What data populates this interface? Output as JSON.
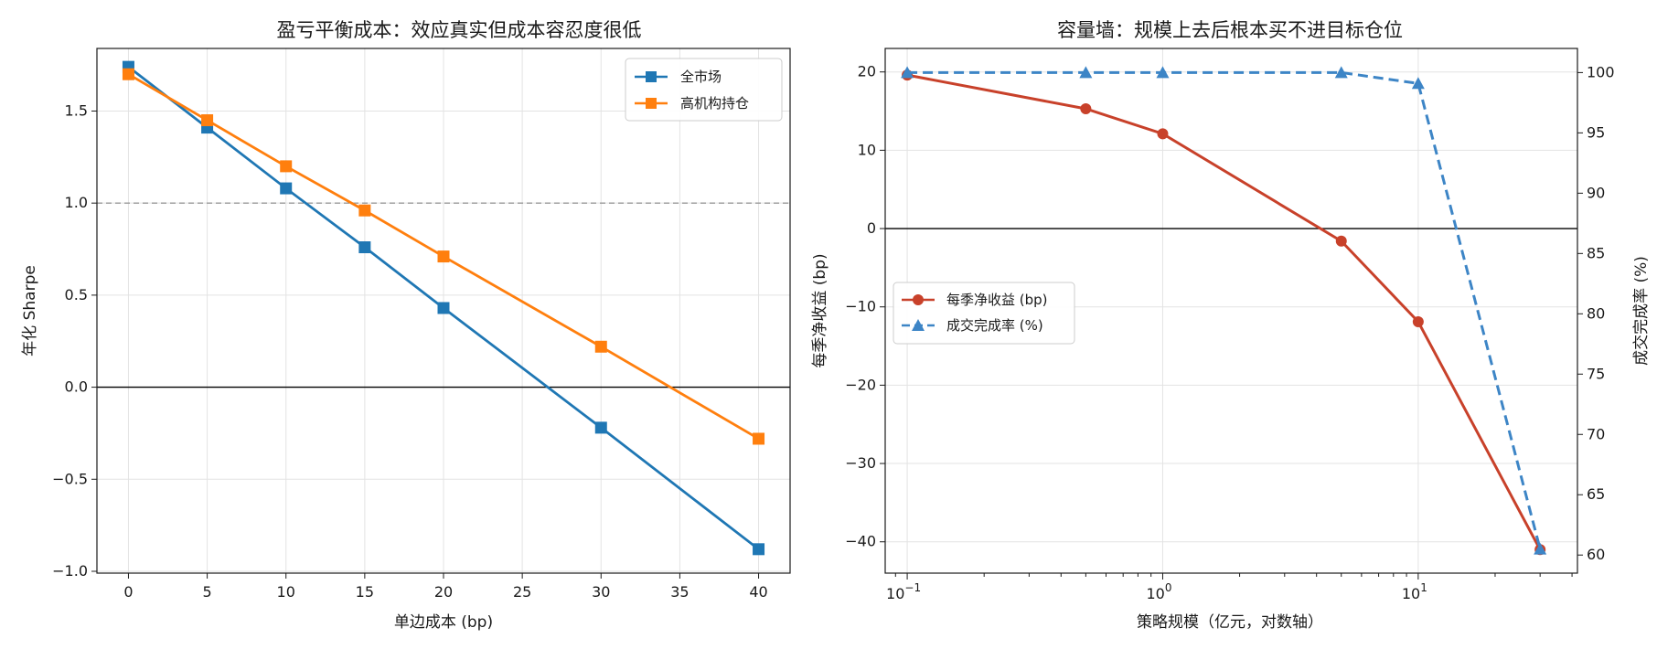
{
  "chart_data": [
    {
      "type": "line",
      "title": "盈亏平衡成本：效应真实但成本容忍度很低",
      "xlabel": "单边成本 (bp)",
      "ylabel": "年化 Sharpe",
      "x": [
        0,
        5,
        10,
        15,
        20,
        30,
        40
      ],
      "xlim": [
        -2,
        42
      ],
      "ylim": [
        -1.01,
        1.84
      ],
      "xticks": [
        "0",
        "5",
        "10",
        "15",
        "20",
        "25",
        "30",
        "35",
        "40"
      ],
      "yticks": [
        "−1.0",
        "−0.5",
        "0.0",
        "0.5",
        "1.0",
        "1.5"
      ],
      "reference_lines": [
        {
          "y": 1.0,
          "style": "dashed",
          "color": "#999999"
        },
        {
          "y": 0.0,
          "style": "solid",
          "color": "#000000"
        }
      ],
      "grid": true,
      "legend_position": "upper-right",
      "series": [
        {
          "name": "全市场",
          "marker": "square",
          "color": "#1f77b4",
          "values": [
            1.74,
            1.41,
            1.08,
            0.76,
            0.43,
            -0.22,
            -0.88
          ]
        },
        {
          "name": "高机构持仓",
          "marker": "square",
          "color": "#ff7f0e",
          "values": [
            1.7,
            1.45,
            1.2,
            0.96,
            0.71,
            0.22,
            -0.28
          ]
        }
      ]
    },
    {
      "type": "line",
      "title": "容量墙：规模上去后根本买不进目标仓位",
      "xlabel": "策略规模（亿元，对数轴）",
      "xscale": "log",
      "xlim": [
        0.082,
        42
      ],
      "x": [
        0.1,
        0.5,
        1,
        5,
        10,
        30
      ],
      "xticks": [
        {
          "base": "10",
          "exp": "−1",
          "value": 0.1
        },
        {
          "base": "10",
          "exp": "0",
          "value": 1
        },
        {
          "base": "10",
          "exp": "1",
          "value": 10
        }
      ],
      "grid": true,
      "legend_position": "center-left",
      "left_axis": {
        "label": "每季净收益 (bp)",
        "color": "#c8412a",
        "ylim": [
          -44,
          23
        ],
        "yticks": [
          "−40",
          "−30",
          "−20",
          "−10",
          "0",
          "10",
          "20"
        ]
      },
      "right_axis": {
        "label": "成交完成率 (%)",
        "color": "#3d85c6",
        "ylim": [
          58.5,
          102
        ],
        "yticks": [
          "60",
          "65",
          "70",
          "75",
          "80",
          "85",
          "90",
          "95",
          "100"
        ]
      },
      "reference_lines": [
        {
          "y": 0,
          "axis": "left",
          "style": "solid",
          "color": "#000000"
        }
      ],
      "series": [
        {
          "name": "每季净收益 (bp)",
          "axis": "left",
          "marker": "circle",
          "style": "solid",
          "color": "#c8412a",
          "values": [
            19.6,
            15.3,
            12.1,
            -1.6,
            -11.9,
            -41.0
          ]
        },
        {
          "name": "成交完成率 (%)",
          "axis": "right",
          "marker": "triangle",
          "style": "dashed",
          "color": "#3d85c6",
          "values": [
            100,
            100,
            100,
            100,
            99.1,
            60.5
          ]
        }
      ]
    }
  ]
}
